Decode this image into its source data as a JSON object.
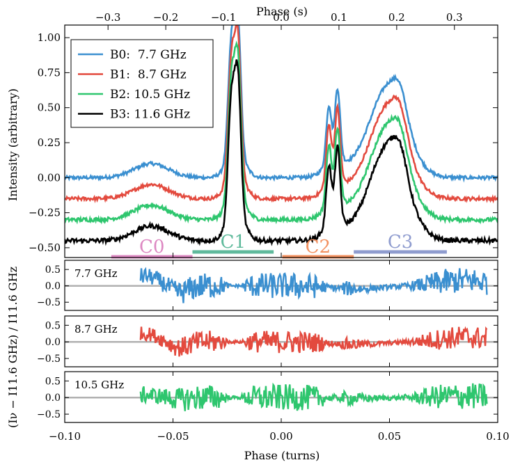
{
  "chart_data": [
    {
      "type": "line",
      "title": "",
      "xlabel": "Phase (turns)",
      "ylabel": "Intensity (arbitrary)",
      "top_xlabel": "Phase (s)",
      "xlim": [
        -0.1,
        0.1
      ],
      "ylim": [
        -0.57,
        1.09
      ],
      "yticks": [
        -0.5,
        -0.25,
        0.0,
        0.25,
        0.5,
        0.75,
        1.0
      ],
      "ytick_labels": [
        "−0.50",
        "−0.25",
        "0.00",
        "0.25",
        "0.50",
        "0.75",
        "1.00"
      ],
      "top_xticks": [
        -0.3,
        -0.2,
        -0.1,
        0.0,
        0.1,
        0.2,
        0.3
      ],
      "top_xtick_labels": [
        "−0.3",
        "−0.2",
        "−0.1",
        "0.0",
        "0.1",
        "0.2",
        "0.3"
      ],
      "top_axis_factor": 3.75,
      "legend_position": "top-left",
      "peak_model": [
        {
          "center": -0.06,
          "width": 0.008,
          "amplitude": 0.1
        },
        {
          "center": -0.023,
          "width": 0.0015,
          "amplitude": 0.8
        },
        {
          "center": -0.02,
          "width": 0.0014,
          "amplitude": 0.9
        },
        {
          "center": -0.021,
          "width": 0.004,
          "amplitude": 0.18
        },
        {
          "center": 0.022,
          "width": 0.0012,
          "amplitude": 0.4
        },
        {
          "center": 0.026,
          "width": 0.0012,
          "amplitude": 0.5
        },
        {
          "center": 0.024,
          "width": 0.004,
          "amplitude": 0.1
        },
        {
          "center": 0.05,
          "width": 0.008,
          "amplitude": 0.55
        },
        {
          "center": 0.055,
          "width": 0.003,
          "amplitude": 0.14
        },
        {
          "center": 0.043,
          "width": 0.012,
          "amplitude": 0.12
        }
      ],
      "series": [
        {
          "name": "B0:  7.7 GHz",
          "color": "#3a8fd0",
          "offset": 0.0,
          "scale": 1.0,
          "noise": 0.012
        },
        {
          "name": "B1:  8.7 GHz",
          "color": "#e34a3e",
          "offset": -0.15,
          "scale": 1.02,
          "noise": 0.012
        },
        {
          "name": "B2: 10.5 GHz",
          "color": "#2ec66e",
          "offset": -0.3,
          "scale": 1.03,
          "noise": 0.014
        },
        {
          "name": "B3: 11.6 GHz",
          "color": "#000000",
          "offset": -0.45,
          "scale": 1.05,
          "noise": 0.016
        }
      ],
      "components": [
        {
          "label": "C0",
          "start": -0.0785,
          "end": -0.041,
          "color": "#dd88c2",
          "y": -0.565
        },
        {
          "label": "C1",
          "start": -0.041,
          "end": -0.0035,
          "color": "#5fba9c",
          "y": -0.53
        },
        {
          "label": "C2",
          "start": 0.0005,
          "end": 0.0335,
          "color": "#f39160",
          "y": -0.565
        },
        {
          "label": "C3",
          "start": 0.0335,
          "end": 0.0765,
          "color": "#8f9ccf",
          "y": -0.53
        }
      ]
    },
    {
      "type": "line",
      "xlabel": "Phase (turns)",
      "ylabel": "(Iν − I11.6 GHz) / I11.6 GHz",
      "xticks": [
        -0.1,
        -0.05,
        0.0,
        0.05,
        0.1
      ],
      "xtick_labels": [
        "−0.10",
        "−0.05",
        "0.00",
        "0.05",
        "0.10"
      ],
      "xlim": [
        -0.1,
        0.1
      ],
      "ylim": [
        -0.75,
        0.78
      ],
      "yticks": [
        -0.5,
        0.0,
        0.5
      ],
      "ytick_labels": [
        "−0.5",
        "0.0",
        "0.5"
      ],
      "data_range": [
        -0.065,
        0.095
      ],
      "panels": [
        {
          "label": "7.7 GHz",
          "color": "#3a8fd0",
          "noise": 0.14,
          "trend": 0.3
        },
        {
          "label": "8.7 GHz",
          "color": "#e34a3e",
          "noise": 0.12,
          "trend": 0.25
        },
        {
          "label": "10.5 GHz",
          "color": "#2ec66e",
          "noise": 0.14,
          "trend": 0.08
        }
      ]
    }
  ]
}
